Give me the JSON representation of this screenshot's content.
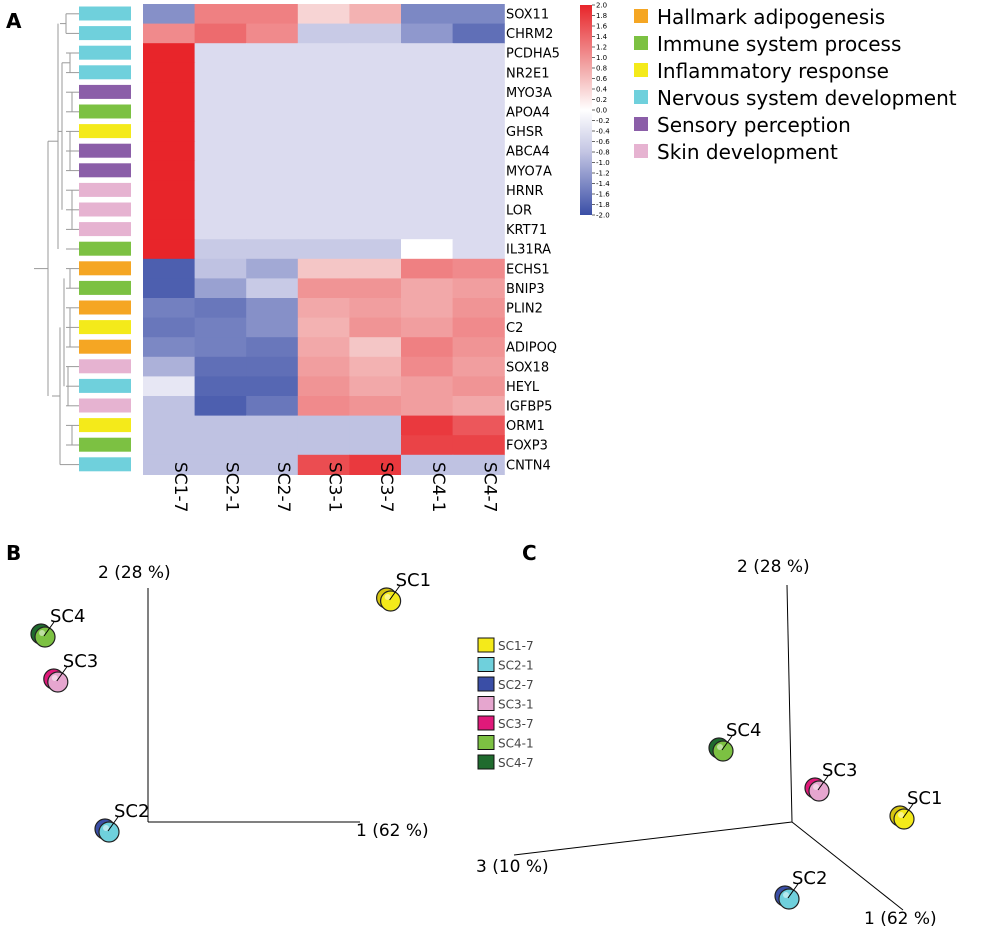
{
  "panel_labels": [
    "A",
    "B",
    "C"
  ],
  "colors": {
    "Hallmark adipogenesis": "#f5a623",
    "Immune system process": "#7cc142",
    "Inflammatory response": "#f4ea1a",
    "Nervous system development": "#6fd0dc",
    "Sensory perception": "#8b5ea8",
    "Skin development": "#e6b3d1"
  },
  "chart_data": [
    {
      "type": "heatmap",
      "columns": [
        "SC1-7",
        "SC2-1",
        "SC2-7",
        "SC3-1",
        "SC3-7",
        "SC4-1",
        "SC4-7"
      ],
      "rows": [
        "SOX11",
        "CHRM2",
        "PCDHA5",
        "NR2E1",
        "MYO3A",
        "APOA4",
        "GHSR",
        "ABCA4",
        "MYO7A",
        "HRNR",
        "LOR",
        "KRT71",
        "IL31RA",
        "ECHS1",
        "BNIP3",
        "PLIN2",
        "C2",
        "ADIPOQ",
        "SOX18",
        "HEYL",
        "IGFBP5",
        "ORM1",
        "FOXP3",
        "CNTN4"
      ],
      "row_categories": [
        "Nervous system development",
        "Nervous system development",
        "Nervous system development",
        "Nervous system development",
        "Sensory perception",
        "Immune system process",
        "Inflammatory response",
        "Sensory perception",
        "Sensory perception",
        "Skin development",
        "Skin development",
        "Skin development",
        "Immune system process",
        "Hallmark adipogenesis",
        "Immune system process",
        "Hallmark adipogenesis",
        "Inflammatory response",
        "Hallmark adipogenesis",
        "Skin development",
        "Nervous system development",
        "Skin development",
        "Inflammatory response",
        "Immune system process",
        "Nervous system development"
      ],
      "values": [
        [
          -1.2,
          1.1,
          1.1,
          0.3,
          0.6,
          -1.3,
          -1.3
        ],
        [
          1.0,
          1.3,
          1.0,
          -0.5,
          -0.5,
          -1.1,
          -1.6
        ],
        [
          2.0,
          -0.3,
          -0.3,
          -0.3,
          -0.3,
          -0.3,
          -0.3
        ],
        [
          2.0,
          -0.3,
          -0.3,
          -0.3,
          -0.3,
          -0.3,
          -0.3
        ],
        [
          2.0,
          -0.3,
          -0.3,
          -0.3,
          -0.3,
          -0.3,
          -0.3
        ],
        [
          2.0,
          -0.3,
          -0.3,
          -0.3,
          -0.3,
          -0.3,
          -0.3
        ],
        [
          2.0,
          -0.3,
          -0.3,
          -0.3,
          -0.3,
          -0.3,
          -0.3
        ],
        [
          2.0,
          -0.3,
          -0.3,
          -0.3,
          -0.3,
          -0.3,
          -0.3
        ],
        [
          2.0,
          -0.3,
          -0.3,
          -0.3,
          -0.3,
          -0.3,
          -0.3
        ],
        [
          2.0,
          -0.3,
          -0.3,
          -0.3,
          -0.3,
          -0.3,
          -0.3
        ],
        [
          2.0,
          -0.3,
          -0.3,
          -0.3,
          -0.3,
          -0.3,
          -0.3
        ],
        [
          2.0,
          -0.3,
          -0.3,
          -0.3,
          -0.3,
          -0.3,
          -0.3
        ],
        [
          2.0,
          -0.5,
          -0.5,
          -0.5,
          -0.5,
          0.0,
          -0.3
        ],
        [
          -1.8,
          -0.6,
          -0.9,
          0.4,
          0.4,
          1.1,
          1.0
        ],
        [
          -1.8,
          -1.0,
          -0.5,
          0.9,
          0.9,
          0.7,
          0.8
        ],
        [
          -1.4,
          -1.5,
          -1.2,
          0.7,
          0.8,
          0.7,
          0.9
        ],
        [
          -1.5,
          -1.4,
          -1.2,
          0.6,
          0.9,
          0.8,
          1.0
        ],
        [
          -1.3,
          -1.4,
          -1.5,
          0.7,
          0.4,
          1.1,
          0.9
        ],
        [
          -0.8,
          -1.6,
          -1.6,
          0.8,
          0.6,
          1.0,
          0.8
        ],
        [
          -0.2,
          -1.7,
          -1.7,
          0.9,
          0.7,
          0.8,
          0.9
        ],
        [
          -0.6,
          -1.8,
          -1.5,
          1.0,
          0.9,
          0.8,
          0.7
        ],
        [
          -0.6,
          -0.6,
          -0.6,
          -0.6,
          -0.6,
          1.8,
          1.5
        ],
        [
          -0.6,
          -0.6,
          -0.6,
          -0.6,
          -0.6,
          1.7,
          1.7
        ],
        [
          -0.6,
          -0.6,
          -0.6,
          1.6,
          1.8,
          -0.6,
          -0.6
        ]
      ],
      "colorbar": {
        "range": [
          -2.0,
          2.0
        ],
        "ticks": [
          "2.0",
          "1.8",
          "1.6",
          "1.4",
          "1.2",
          "1.0",
          "0.8",
          "0.6",
          "0.4",
          "0.2",
          "0.0",
          "-0.2",
          "-0.4",
          "-0.6",
          "-0.8",
          "-1.0",
          "-1.2",
          "-1.4",
          "-1.6",
          "-1.8",
          "-2.0"
        ],
        "colors": [
          "#3a4ea6",
          "#d9d9ee",
          "#ffffff",
          "#f4c6c6",
          "#e8252a"
        ]
      },
      "legend": [
        "Hallmark adipogenesis",
        "Immune system process",
        "Inflammatory response",
        "Nervous system development",
        "Sensory perception",
        "Skin development"
      ]
    },
    {
      "type": "scatter",
      "xlabel": "1 (62 %)",
      "ylabel": "2 (28 %)",
      "points": [
        {
          "label": "SC1",
          "x": 0.68,
          "y": 0.22,
          "colors": [
            "#f4ea1a",
            "#d6c510"
          ]
        },
        {
          "label": "SC4",
          "x": -0.4,
          "y": 0.1,
          "colors": [
            "#7cc142",
            "#1f6b2e"
          ]
        },
        {
          "label": "SC3",
          "x": -0.36,
          "y": -0.05,
          "colors": [
            "#e6a6cf",
            "#e0197a"
          ]
        },
        {
          "label": "SC2",
          "x": -0.2,
          "y": -0.55,
          "colors": [
            "#6fd0dc",
            "#3a4ea6"
          ]
        }
      ]
    },
    {
      "type": "scatter",
      "xlabel": "1 (62 %)",
      "ylabel": "2 (28 %)",
      "zlabel": "3 (10 %)",
      "points": [
        {
          "label": "SC4",
          "colors": [
            "#7cc142",
            "#1f6b2e"
          ]
        },
        {
          "label": "SC3",
          "colors": [
            "#e6a6cf",
            "#e0197a"
          ]
        },
        {
          "label": "SC1",
          "colors": [
            "#f4ea1a",
            "#d6c510"
          ]
        },
        {
          "label": "SC2",
          "colors": [
            "#6fd0dc",
            "#3a4ea6"
          ]
        }
      ]
    }
  ],
  "sample_legend": [
    {
      "label": "SC1-7",
      "color": "#f4ea1a"
    },
    {
      "label": "SC2-1",
      "color": "#6fd0dc"
    },
    {
      "label": "SC2-7",
      "color": "#3a4ea6"
    },
    {
      "label": "SC3-1",
      "color": "#e6a6cf"
    },
    {
      "label": "SC3-7",
      "color": "#e0197a"
    },
    {
      "label": "SC4-1",
      "color": "#7cc142"
    },
    {
      "label": "SC4-7",
      "color": "#1f6b2e"
    }
  ]
}
